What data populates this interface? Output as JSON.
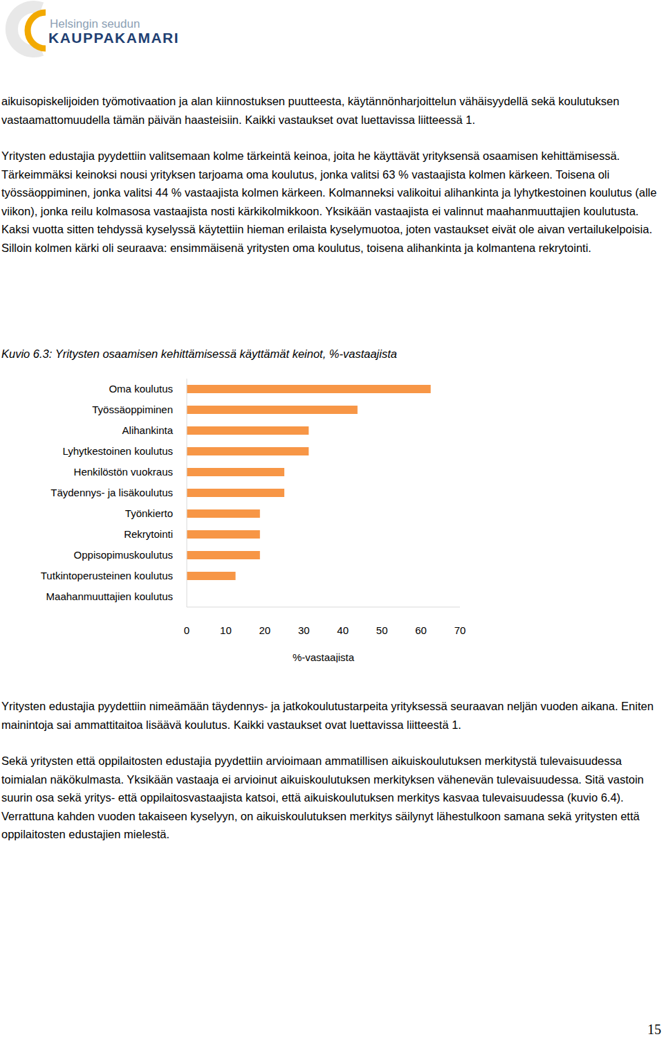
{
  "header": {
    "logo_line1": "Helsingin seudun",
    "logo_line2": "KAUPPAKAMARI"
  },
  "paragraphs_before": [
    "aikuisopiskelijoiden työmotivaation ja alan kiinnostuksen puutteesta, käytännönharjoittelun vähäisyydellä sekä koulutuksen vastaamattomuudella tämän päivän haasteisiin. Kaikki vastaukset ovat luettavissa liitteessä 1.",
    "Yritysten edustajia pyydettiin valitsemaan kolme tärkeintä keinoa, joita he käyttävät yrityksensä osaamisen kehittämisessä. Tärkeimmäksi keinoksi nousi yrityksen tarjoama oma koulutus, jonka valitsi 63 % vastaajista kolmen kärkeen. Toisena oli työssäoppiminen, jonka valitsi 44 % vastaajista kolmen kärkeen. Kolmanneksi valikoitui alihankinta ja lyhytkestoinen koulutus (alle viikon), jonka reilu kolmasosa vastaajista nosti kärkikolmikkoon. Yksikään vastaajista ei valinnut maahanmuuttajien koulutusta. Kaksi vuotta sitten tehdyssä kyselyssä käytettiin hieman erilaista kyselymuotoa, joten vastaukset eivät ole aivan vertailukelpoisia. Silloin kolmen kärki oli seuraava: ensimmäisenä yritysten oma koulutus, toisena alihankinta ja kolmantena rekrytointi."
  ],
  "chart_data": {
    "type": "bar",
    "orientation": "horizontal",
    "title": "Kuvio 6.3: Yritysten osaamisen kehittämisessä käyttämät keinot, %-vastaajista",
    "x_label": "%-vastaajista",
    "categories": [
      "Oma koulutus",
      "Työssäoppiminen",
      "Alihankinta",
      "Lyhytkestoinen koulutus",
      "Henkilöstön vuokraus",
      "Täydennys- ja lisäkoulutus",
      "Työnkierto",
      "Rekrytointi",
      "Oppisopimuskoulutus",
      "Tutkintoperusteinen koulutus",
      "Maahanmuuttajien koulutus"
    ],
    "values": [
      62.5,
      43.75,
      31.25,
      31.25,
      25,
      25,
      18.75,
      18.75,
      18.75,
      12.5,
      0
    ],
    "color": "#f79646",
    "xlim": [
      0,
      70
    ],
    "xticks": [
      0,
      10,
      20,
      30,
      40,
      50,
      60,
      70
    ],
    "grid": false
  },
  "paragraphs_after": [
    "Yritysten edustajia pyydettiin nimeämään täydennys- ja jatkokoulutustarpeita yrityksessä seuraavan neljän vuoden aikana. Eniten mainintoja sai ammattitaitoa lisäävä koulutus. Kaikki vastaukset ovat luettavissa liitteestä 1.",
    "Sekä yritysten että oppilaitosten edustajia pyydettiin arvioimaan ammatillisen aikuiskoulutuksen merkitystä tulevaisuudessa toimialan näkökulmasta. Yksikään vastaaja ei arvioinut aikuiskoulutuksen merkityksen vähenevän tulevaisuudessa. Sitä vastoin suurin osa sekä yritys- että oppilaitosvastaajista katsoi, että aikuiskoulutuksen merkitys kasvaa tulevaisuudessa (kuvio 6.4). Verrattuna kahden vuoden takaiseen kyselyyn, on aikuiskoulutuksen merkitys säilynyt lähestulkoon samana sekä yritysten että oppilaitosten edustajien mielestä."
  ],
  "page_number": "15"
}
